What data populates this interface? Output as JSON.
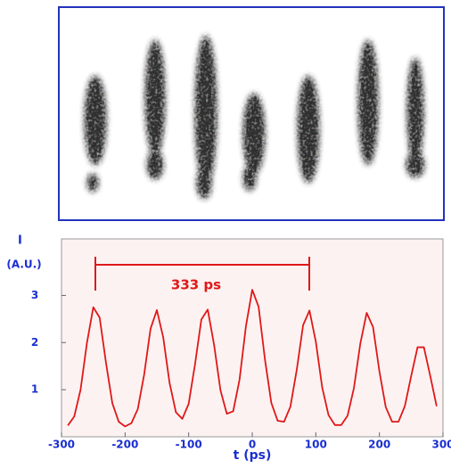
{
  "chart_data": {
    "type": "line",
    "x_label": "t (ps)",
    "y_label": "I",
    "y_unit": "(A.U.)",
    "annotation": "333 ps",
    "xlim": [
      -300,
      300
    ],
    "xticks": [
      -300,
      -200,
      -100,
      0,
      100,
      200,
      300
    ],
    "ylim": [
      0,
      4.2
    ],
    "yticks": [
      1,
      2,
      3
    ],
    "x": [
      -290,
      -280,
      -270,
      -260,
      -250,
      -240,
      -230,
      -220,
      -210,
      -200,
      -190,
      -180,
      -170,
      -160,
      -150,
      -140,
      -130,
      -120,
      -110,
      -100,
      -90,
      -80,
      -70,
      -60,
      -50,
      -40,
      -30,
      -20,
      -10,
      0,
      10,
      20,
      30,
      40,
      50,
      60,
      70,
      80,
      90,
      100,
      110,
      120,
      130,
      140,
      150,
      160,
      170,
      180,
      190,
      200,
      210,
      220,
      230,
      240,
      250,
      260,
      270,
      280,
      290
    ],
    "series": [
      {
        "color": "#e01818",
        "values": [
          0.24,
          0.43,
          1.0,
          1.99,
          2.75,
          2.53,
          1.57,
          0.71,
          0.32,
          0.22,
          0.29,
          0.59,
          1.32,
          2.29,
          2.69,
          2.11,
          1.14,
          0.52,
          0.38,
          0.7,
          1.54,
          2.49,
          2.7,
          1.95,
          0.99,
          0.49,
          0.54,
          1.21,
          2.34,
          3.12,
          2.76,
          1.64,
          0.72,
          0.34,
          0.32,
          0.64,
          1.42,
          2.37,
          2.68,
          2.02,
          1.05,
          0.46,
          0.25,
          0.25,
          0.45,
          1.04,
          1.98,
          2.63,
          2.33,
          1.39,
          0.63,
          0.32,
          0.32,
          0.65,
          1.29,
          1.9,
          1.9,
          1.29,
          0.65
        ]
      }
    ]
  }
}
